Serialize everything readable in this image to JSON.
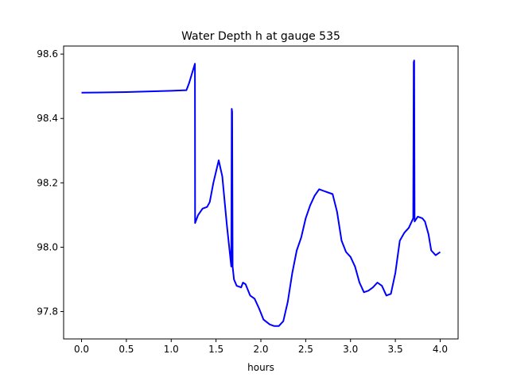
{
  "chart_data": {
    "type": "line",
    "title": "Water Depth h at gauge 535",
    "xlabel": "hours",
    "ylabel": "",
    "xlim": [
      -0.2,
      4.2
    ],
    "ylim": [
      97.715,
      98.625
    ],
    "xticks": [
      0.0,
      0.5,
      1.0,
      1.5,
      2.0,
      2.5,
      3.0,
      3.5,
      4.0
    ],
    "xtick_labels": [
      "0.0",
      "0.5",
      "1.0",
      "1.5",
      "2.0",
      "2.5",
      "3.0",
      "3.5",
      "4.0"
    ],
    "yticks": [
      97.8,
      98.0,
      98.2,
      98.4,
      98.6
    ],
    "ytick_labels": [
      "97.8",
      "98.0",
      "98.2",
      "98.4",
      "98.6"
    ],
    "grid": false,
    "series": [
      {
        "name": "h",
        "color": "#0000ff",
        "x": [
          0,
          0.5,
          1.0,
          1.17,
          1.2,
          1.265,
          1.266,
          1.3,
          1.35,
          1.4,
          1.43,
          1.47,
          1.53,
          1.57,
          1.62,
          1.67,
          1.675,
          1.68,
          1.685,
          1.7,
          1.73,
          1.78,
          1.8,
          1.83,
          1.88,
          1.93,
          1.98,
          2.03,
          2.1,
          2.15,
          2.2,
          2.25,
          2.3,
          2.35,
          2.4,
          2.45,
          2.5,
          2.55,
          2.6,
          2.65,
          2.7,
          2.75,
          2.8,
          2.85,
          2.9,
          2.95,
          3.0,
          3.05,
          3.1,
          3.15,
          3.2,
          3.25,
          3.3,
          3.35,
          3.4,
          3.45,
          3.5,
          3.55,
          3.6,
          3.65,
          3.7,
          3.705,
          3.71,
          3.715,
          3.75,
          3.8,
          3.83,
          3.87,
          3.9,
          3.95,
          4.0
        ],
        "y": [
          98.48,
          98.482,
          98.486,
          98.488,
          98.51,
          98.57,
          98.075,
          98.1,
          98.12,
          98.125,
          98.14,
          98.2,
          98.27,
          98.22,
          98.07,
          97.94,
          98.43,
          98.42,
          97.94,
          97.9,
          97.88,
          97.875,
          97.89,
          97.885,
          97.85,
          97.84,
          97.81,
          97.775,
          97.76,
          97.755,
          97.755,
          97.77,
          97.83,
          97.92,
          97.99,
          98.03,
          98.09,
          98.13,
          98.16,
          98.18,
          98.175,
          98.17,
          98.165,
          98.11,
          98.02,
          97.985,
          97.97,
          97.94,
          97.89,
          97.86,
          97.865,
          97.875,
          97.89,
          97.88,
          97.85,
          97.855,
          97.92,
          98.02,
          98.045,
          98.06,
          98.09,
          98.575,
          98.58,
          98.08,
          98.095,
          98.09,
          98.08,
          98.04,
          97.99,
          97.975,
          97.985
        ]
      }
    ]
  }
}
